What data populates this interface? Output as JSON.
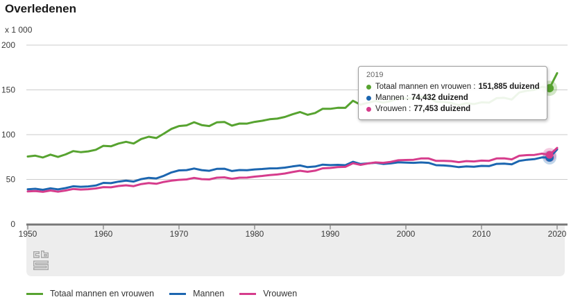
{
  "header": {
    "title": "Overledenen"
  },
  "chart": {
    "unit_label": "x 1 000"
  },
  "icons": {
    "logo": "cbs-logo",
    "legend_swatch": "line-swatch",
    "tooltip_bullet": "series-dot"
  },
  "tooltip": {
    "year": "2019",
    "rows": [
      {
        "label": "Totaal mannen en vrouwen :",
        "value": "151,885 duizend",
        "color": "#57a330"
      },
      {
        "label": "Mannen :",
        "value": "74,432 duizend",
        "color": "#1c66b0"
      },
      {
        "label": "Vrouwen :",
        "value": "77,453 duizend",
        "color": "#d63c8c"
      }
    ]
  },
  "legend": {
    "items": [
      {
        "label": "Totaal mannen en vrouwen",
        "color": "#57a330"
      },
      {
        "label": "Mannen",
        "color": "#1c66b0"
      },
      {
        "label": "Vrouwen",
        "color": "#d63c8c"
      }
    ]
  },
  "chart_data": {
    "type": "line",
    "title": "Overledenen",
    "ylabel": "x 1 000",
    "xlabel": "",
    "xlim": [
      1950,
      2020
    ],
    "ylim": [
      0,
      200
    ],
    "x_ticks": [
      1950,
      1960,
      1970,
      1980,
      1990,
      2000,
      2010,
      2020
    ],
    "y_ticks": [
      0,
      50,
      100,
      150,
      200
    ],
    "grid": true,
    "legend_position": "bottom",
    "marker_year": 2019,
    "style": {
      "band_color": "#ededed",
      "grid_color": "#cbcbcb",
      "axis_color": "#7d7d7d",
      "tick_color": "#a9a9a9",
      "logo_color": "#a5a5a5"
    },
    "x": [
      1950,
      1951,
      1952,
      1953,
      1954,
      1955,
      1956,
      1957,
      1958,
      1959,
      1960,
      1961,
      1962,
      1963,
      1964,
      1965,
      1966,
      1967,
      1968,
      1969,
      1970,
      1971,
      1972,
      1973,
      1974,
      1975,
      1976,
      1977,
      1978,
      1979,
      1980,
      1981,
      1982,
      1983,
      1984,
      1985,
      1986,
      1987,
      1988,
      1989,
      1990,
      1991,
      1992,
      1993,
      1994,
      1995,
      1996,
      1997,
      1998,
      1999,
      2000,
      2001,
      2002,
      2003,
      2004,
      2005,
      2006,
      2007,
      2008,
      2009,
      2010,
      2011,
      2012,
      2013,
      2014,
      2015,
      2016,
      2017,
      2018,
      2019,
      2020
    ],
    "series": [
      {
        "name": "Totaal mannen en vrouwen",
        "color": "#57a330",
        "values": [
          75.6,
          76.5,
          74.5,
          77.7,
          75.1,
          77.9,
          81.6,
          80.5,
          81.3,
          83.1,
          87.5,
          87.0,
          90.1,
          92.0,
          90.1,
          95.1,
          97.7,
          96.2,
          101.2,
          106.4,
          109.6,
          110.4,
          113.9,
          110.7,
          109.6,
          113.7,
          114.2,
          110.1,
          112.4,
          112.3,
          114.3,
          115.5,
          117.2,
          117.9,
          119.8,
          122.7,
          125.3,
          122.2,
          124.2,
          128.9,
          128.8,
          130.0,
          129.9,
          137.8,
          133.5,
          135.7,
          137.6,
          135.8,
          137.5,
          140.5,
          140.5,
          140.4,
          142.4,
          141.9,
          136.6,
          136.4,
          135.4,
          133.0,
          135.1,
          134.2,
          136.1,
          135.7,
          140.8,
          141.2,
          139.2,
          147.1,
          149.0,
          150.0,
          153.4,
          151.885,
          168.7
        ]
      },
      {
        "name": "Mannen",
        "color": "#1c66b0",
        "values": [
          39.0,
          39.5,
          38.4,
          40.1,
          38.8,
          40.3,
          42.3,
          41.8,
          42.2,
          43.2,
          46.1,
          45.8,
          47.5,
          48.6,
          47.6,
          50.3,
          51.8,
          51.1,
          54.0,
          57.8,
          60.1,
          60.4,
          62.2,
          60.4,
          59.6,
          61.8,
          61.9,
          59.4,
          60.5,
          60.3,
          61.2,
          61.6,
          62.3,
          62.4,
          63.2,
          64.5,
          65.6,
          63.7,
          64.4,
          66.5,
          66.0,
          66.3,
          65.9,
          69.7,
          67.2,
          67.9,
          68.6,
          67.3,
          67.9,
          69.1,
          68.8,
          68.5,
          69.0,
          68.5,
          65.9,
          65.6,
          64.9,
          63.7,
          64.6,
          64.1,
          65.1,
          64.9,
          67.4,
          67.6,
          66.8,
          70.7,
          71.9,
          72.6,
          74.6,
          74.432,
          83.5
        ]
      },
      {
        "name": "Vrouwen",
        "color": "#d63c8c",
        "values": [
          36.6,
          37.0,
          36.1,
          37.6,
          36.3,
          37.6,
          39.3,
          38.7,
          39.1,
          39.9,
          41.4,
          41.2,
          42.6,
          43.4,
          42.5,
          44.8,
          45.9,
          45.1,
          47.2,
          48.6,
          49.5,
          50.0,
          51.7,
          50.3,
          50.0,
          51.9,
          52.3,
          50.7,
          51.9,
          52.0,
          53.1,
          53.9,
          54.9,
          55.5,
          56.6,
          58.2,
          59.7,
          58.5,
          59.8,
          62.4,
          62.8,
          63.7,
          64.0,
          68.1,
          66.3,
          67.8,
          69.0,
          68.5,
          69.6,
          71.4,
          71.7,
          71.9,
          73.4,
          73.4,
          70.7,
          70.8,
          70.5,
          69.3,
          70.5,
          70.1,
          71.0,
          70.8,
          73.4,
          73.6,
          72.4,
          76.4,
          77.1,
          77.4,
          78.8,
          77.453,
          85.2
        ]
      }
    ]
  }
}
